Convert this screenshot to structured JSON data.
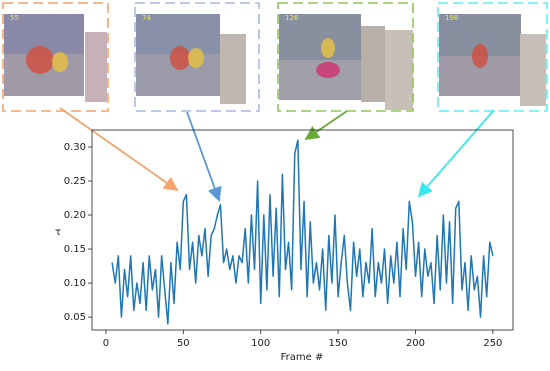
{
  "chart_data": {
    "type": "line",
    "xlabel": "Frame #",
    "ylabel": "τ",
    "color": "#1f77b4",
    "frame_labels": [
      "55",
      "74",
      "126",
      "198"
    ],
    "x": [
      4,
      6,
      8,
      10,
      12,
      14,
      16,
      18,
      20,
      22,
      24,
      26,
      28,
      30,
      32,
      34,
      36,
      38,
      40,
      42,
      44,
      46,
      48,
      50,
      52,
      54,
      56,
      58,
      60,
      62,
      64,
      66,
      68,
      70,
      72,
      74,
      76,
      78,
      80,
      82,
      84,
      86,
      88,
      90,
      92,
      94,
      96,
      98,
      100,
      102,
      104,
      106,
      108,
      110,
      112,
      114,
      116,
      118,
      120,
      122,
      124,
      126,
      128,
      130,
      132,
      134,
      136,
      138,
      140,
      142,
      144,
      146,
      148,
      150,
      152,
      154,
      156,
      158,
      160,
      162,
      164,
      166,
      168,
      170,
      172,
      174,
      176,
      178,
      180,
      182,
      184,
      186,
      188,
      190,
      192,
      194,
      196,
      198,
      200,
      202,
      204,
      206,
      208,
      210,
      212,
      214,
      216,
      218,
      220,
      222,
      224,
      226,
      228,
      230,
      232,
      234,
      236,
      238,
      240,
      242,
      244,
      246,
      248,
      250
    ],
    "values": [
      0.13,
      0.1,
      0.14,
      0.05,
      0.12,
      0.08,
      0.14,
      0.06,
      0.1,
      0.07,
      0.13,
      0.06,
      0.14,
      0.09,
      0.12,
      0.05,
      0.14,
      0.09,
      0.04,
      0.13,
      0.07,
      0.16,
      0.12,
      0.22,
      0.23,
      0.12,
      0.16,
      0.1,
      0.17,
      0.14,
      0.18,
      0.11,
      0.17,
      0.18,
      0.2,
      0.215,
      0.13,
      0.15,
      0.12,
      0.14,
      0.1,
      0.14,
      0.13,
      0.18,
      0.1,
      0.2,
      0.12,
      0.25,
      0.07,
      0.2,
      0.09,
      0.23,
      0.11,
      0.21,
      0.08,
      0.26,
      0.12,
      0.16,
      0.09,
      0.29,
      0.31,
      0.12,
      0.22,
      0.08,
      0.19,
      0.1,
      0.13,
      0.09,
      0.15,
      0.06,
      0.17,
      0.1,
      0.2,
      0.08,
      0.13,
      0.17,
      0.1,
      0.06,
      0.16,
      0.11,
      0.15,
      0.08,
      0.13,
      0.1,
      0.18,
      0.08,
      0.13,
      0.1,
      0.15,
      0.07,
      0.14,
      0.1,
      0.16,
      0.08,
      0.18,
      0.12,
      0.22,
      0.19,
      0.11,
      0.16,
      0.08,
      0.15,
      0.11,
      0.13,
      0.07,
      0.17,
      0.09,
      0.2,
      0.1,
      0.19,
      0.07,
      0.21,
      0.22,
      0.09,
      0.13,
      0.06,
      0.14,
      0.09,
      0.11,
      0.05,
      0.14,
      0.08,
      0.16,
      0.14
    ],
    "xlim": [
      -9,
      263
    ],
    "ylim": [
      0.031,
      0.325
    ],
    "xticks": [
      0,
      50,
      100,
      150,
      200,
      250
    ],
    "yticks": [
      0.05,
      {
        "value": 0.1,
        "label": "0.10"
      },
      0.15,
      {
        "value": 0.2,
        "label": "0.20"
      },
      0.25,
      {
        "value": 0.3,
        "label": "0.30"
      }
    ]
  }
}
